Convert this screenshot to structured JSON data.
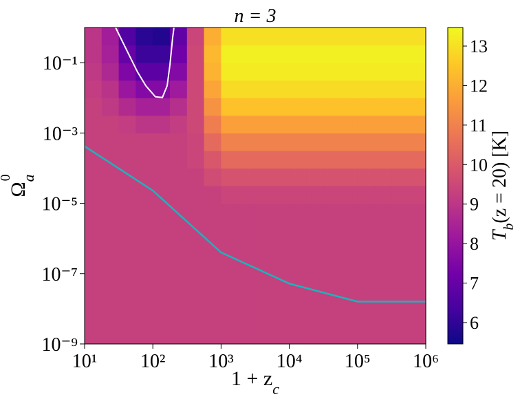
{
  "chart_data": {
    "type": "heatmap",
    "title": "n = 3",
    "xlabel": {
      "main": "1 + z",
      "sub": "c"
    },
    "ylabel": {
      "main": "Ω",
      "sub": "a",
      "sup": "0"
    },
    "colorbar_label": {
      "main": "T",
      "sub": "b",
      "rest": "(z = 20) [K]"
    },
    "colormap": "plasma",
    "xscale": "log",
    "yscale": "log",
    "xlim": [
      10,
      1000000
    ],
    "ylim": [
      1e-09,
      1
    ],
    "clim": [
      5.46,
      13.47
    ],
    "xticks": [
      {
        "value": 10,
        "label": "10¹"
      },
      {
        "value": 100,
        "label": "10²"
      },
      {
        "value": 1000,
        "label": "10³"
      },
      {
        "value": 10000,
        "label": "10⁴"
      },
      {
        "value": 100000,
        "label": "10⁵"
      },
      {
        "value": 1000000,
        "label": "10⁶"
      }
    ],
    "yticks": [
      {
        "value": 1e-09,
        "label": "10⁻⁹"
      },
      {
        "value": 1e-07,
        "label": "10⁻⁷"
      },
      {
        "value": 1e-05,
        "label": "10⁻⁵"
      },
      {
        "value": 0.001,
        "label": "10⁻³"
      },
      {
        "value": 0.1,
        "label": "10⁻¹"
      }
    ],
    "cticks": [
      6,
      7,
      8,
      9,
      10,
      11,
      12,
      13
    ],
    "x_edges": [
      10,
      17.78,
      31.62,
      56.23,
      100,
      177.8,
      316.2,
      562.3,
      1000,
      1778,
      3162,
      5623,
      10000,
      17783,
      31623,
      56234,
      100000,
      177828,
      316228,
      562341,
      1000000
    ],
    "y_edges": [
      1e-09,
      3.162e-09,
      1e-08,
      3.162e-08,
      1e-07,
      3.162e-07,
      1e-06,
      3.162e-06,
      1e-05,
      3.162e-05,
      0.0001,
      0.0003162,
      0.001,
      0.003162,
      0.01,
      0.03162,
      0.1,
      0.3162,
      1
    ],
    "z": [
      [
        9.3,
        9.3,
        9.3,
        9.3,
        9.3,
        9.3,
        9.3,
        9.3,
        9.3,
        9.3,
        9.3,
        9.3,
        9.3,
        9.3,
        9.3,
        9.3,
        9.3,
        9.3,
        9.3,
        9.3
      ],
      [
        9.3,
        9.3,
        9.3,
        9.3,
        9.3,
        9.3,
        9.3,
        9.3,
        9.3,
        9.3,
        9.3,
        9.3,
        9.3,
        9.3,
        9.3,
        9.3,
        9.3,
        9.3,
        9.3,
        9.3
      ],
      [
        9.3,
        9.3,
        9.3,
        9.3,
        9.3,
        9.3,
        9.3,
        9.3,
        9.3,
        9.3,
        9.3,
        9.3,
        9.3,
        9.3,
        9.3,
        9.3,
        9.3,
        9.3,
        9.3,
        9.3
      ],
      [
        9.3,
        9.3,
        9.3,
        9.3,
        9.3,
        9.3,
        9.3,
        9.3,
        9.3,
        9.3,
        9.3,
        9.3,
        9.3,
        9.3,
        9.3,
        9.3,
        9.3,
        9.3,
        9.3,
        9.3
      ],
      [
        9.3,
        9.3,
        9.3,
        9.3,
        9.3,
        9.3,
        9.3,
        9.3,
        9.3,
        9.3,
        9.3,
        9.3,
        9.3,
        9.3,
        9.3,
        9.3,
        9.3,
        9.3,
        9.3,
        9.3
      ],
      [
        9.3,
        9.3,
        9.3,
        9.3,
        9.3,
        9.3,
        9.3,
        9.3,
        9.3,
        9.3,
        9.3,
        9.3,
        9.3,
        9.3,
        9.3,
        9.3,
        9.3,
        9.3,
        9.3,
        9.3
      ],
      [
        9.3,
        9.3,
        9.3,
        9.3,
        9.3,
        9.3,
        9.3,
        9.3,
        9.3,
        9.3,
        9.3,
        9.3,
        9.3,
        9.3,
        9.3,
        9.3,
        9.3,
        9.3,
        9.3,
        9.3
      ],
      [
        9.3,
        9.3,
        9.3,
        9.3,
        9.3,
        9.3,
        9.3,
        9.3,
        9.3,
        9.3,
        9.3,
        9.3,
        9.3,
        9.3,
        9.3,
        9.3,
        9.3,
        9.3,
        9.3,
        9.3
      ],
      [
        9.3,
        9.3,
        9.3,
        9.3,
        9.3,
        9.3,
        9.3,
        9.3,
        9.4,
        9.4,
        9.4,
        9.4,
        9.4,
        9.4,
        9.4,
        9.4,
        9.4,
        9.4,
        9.4,
        9.4
      ],
      [
        9.3,
        9.3,
        9.3,
        9.3,
        9.3,
        9.3,
        9.3,
        9.6,
        9.8,
        9.8,
        9.8,
        9.8,
        9.8,
        9.8,
        9.8,
        9.8,
        9.8,
        9.8,
        9.8,
        9.8
      ],
      [
        9.3,
        9.3,
        9.3,
        9.3,
        9.3,
        9.3,
        9.4,
        9.9,
        10.4,
        10.4,
        10.4,
        10.4,
        10.4,
        10.4,
        10.4,
        10.4,
        10.4,
        10.4,
        10.4,
        10.4
      ],
      [
        9.3,
        9.3,
        9.3,
        9.3,
        9.3,
        9.3,
        9.4,
        10.4,
        11.0,
        11.0,
        11.0,
        11.0,
        11.0,
        11.0,
        11.0,
        11.0,
        11.0,
        11.0,
        11.0,
        11.0
      ],
      [
        9.3,
        9.3,
        9.2,
        9.0,
        9.0,
        9.2,
        9.5,
        10.9,
        11.7,
        11.7,
        11.7,
        11.7,
        11.7,
        11.7,
        11.7,
        11.7,
        11.7,
        11.7,
        11.7,
        11.7
      ],
      [
        9.3,
        9.1,
        8.7,
        8.4,
        8.4,
        8.8,
        9.5,
        11.4,
        12.4,
        12.4,
        12.4,
        12.4,
        12.4,
        12.4,
        12.4,
        12.4,
        12.4,
        12.4,
        12.4,
        12.4
      ],
      [
        9.2,
        8.9,
        8.1,
        7.6,
        7.6,
        8.2,
        9.5,
        11.8,
        12.9,
        12.9,
        12.9,
        12.9,
        12.9,
        12.9,
        12.9,
        12.9,
        12.9,
        12.9,
        12.9,
        12.9
      ],
      [
        9.1,
        8.6,
        7.5,
        6.8,
        6.8,
        7.6,
        9.5,
        12.1,
        13.2,
        13.2,
        13.2,
        13.2,
        13.2,
        13.2,
        13.2,
        13.2,
        13.2,
        13.2,
        13.2,
        13.2
      ],
      [
        9.0,
        8.4,
        7.0,
        6.2,
        6.2,
        7.2,
        9.5,
        12.2,
        13.3,
        13.3,
        13.3,
        13.3,
        13.3,
        13.3,
        13.3,
        13.3,
        13.3,
        13.3,
        13.3,
        13.3
      ],
      [
        9.0,
        8.3,
        6.6,
        5.9,
        5.8,
        6.9,
        9.4,
        12.0,
        13.0,
        13.0,
        13.0,
        13.0,
        13.0,
        13.0,
        13.0,
        13.0,
        13.0,
        13.0,
        13.0,
        13.0
      ]
    ],
    "contours": [
      {
        "color": "#ffffff",
        "x": [
          28.4,
          42.2,
          59.7,
          78.9,
          109,
          138,
          162,
          178,
          195,
          204
        ],
        "y": [
          1,
          0.21,
          0.054,
          0.022,
          0.0107,
          0.0102,
          0.022,
          0.085,
          0.51,
          1
        ]
      },
      {
        "color": "#17b6bf",
        "x": [
          10,
          100,
          1000,
          10000,
          100000,
          1000000
        ],
        "y": [
          0.00042,
          2.3e-05,
          4e-07,
          5.2e-08,
          1.6e-08,
          1.6e-08
        ]
      }
    ]
  }
}
